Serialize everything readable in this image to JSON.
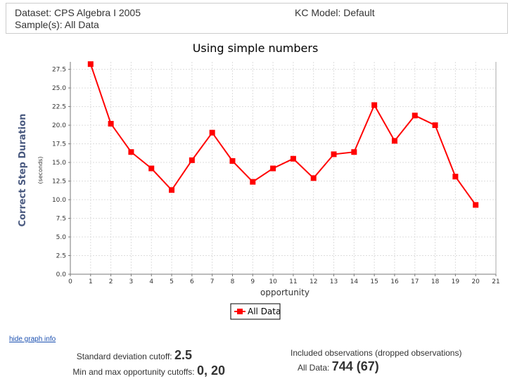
{
  "header": {
    "dataset": "Dataset: CPS Algebra I 2005",
    "samples": "Sample(s): All Data",
    "kc_model": "KC Model: Default"
  },
  "chart_data": {
    "type": "line",
    "title": "Using simple numbers",
    "xlabel": "opportunity",
    "ylabel": "Correct Step Duration",
    "ylabel_unit": "(seconds)",
    "xlim": [
      0,
      21
    ],
    "ylim": [
      0,
      28.5
    ],
    "x_ticks": [
      0,
      1,
      2,
      3,
      4,
      5,
      6,
      7,
      8,
      9,
      10,
      11,
      12,
      13,
      14,
      15,
      16,
      17,
      18,
      19,
      20,
      21
    ],
    "y_ticks": [
      "0.0",
      "2.5",
      "5.0",
      "7.5",
      "10.0",
      "12.5",
      "15.0",
      "17.5",
      "20.0",
      "22.5",
      "25.0",
      "27.5"
    ],
    "grid": true,
    "legend_position": "bottom",
    "series": [
      {
        "name": "All Data",
        "color": "#ff0000",
        "x": [
          1,
          2,
          3,
          4,
          5,
          6,
          7,
          8,
          9,
          10,
          11,
          12,
          13,
          14,
          15,
          16,
          17,
          18,
          19,
          20
        ],
        "values": [
          28.2,
          20.2,
          16.4,
          14.2,
          11.3,
          15.3,
          19.0,
          15.2,
          12.4,
          14.2,
          15.5,
          12.9,
          16.1,
          16.4,
          22.7,
          17.9,
          21.3,
          20.0,
          13.1,
          9.3
        ]
      }
    ]
  },
  "footer": {
    "hide_link": "hide graph info",
    "sd_label": "Standard deviation cutoff:",
    "sd_value": "2.5",
    "minmax_label": "Min and max opportunity cutoffs:",
    "minmax_value": "0, 20",
    "included_label": "Included observations (dropped observations)",
    "all_data_label": "All Data:",
    "all_data_value": "744 (67)"
  }
}
